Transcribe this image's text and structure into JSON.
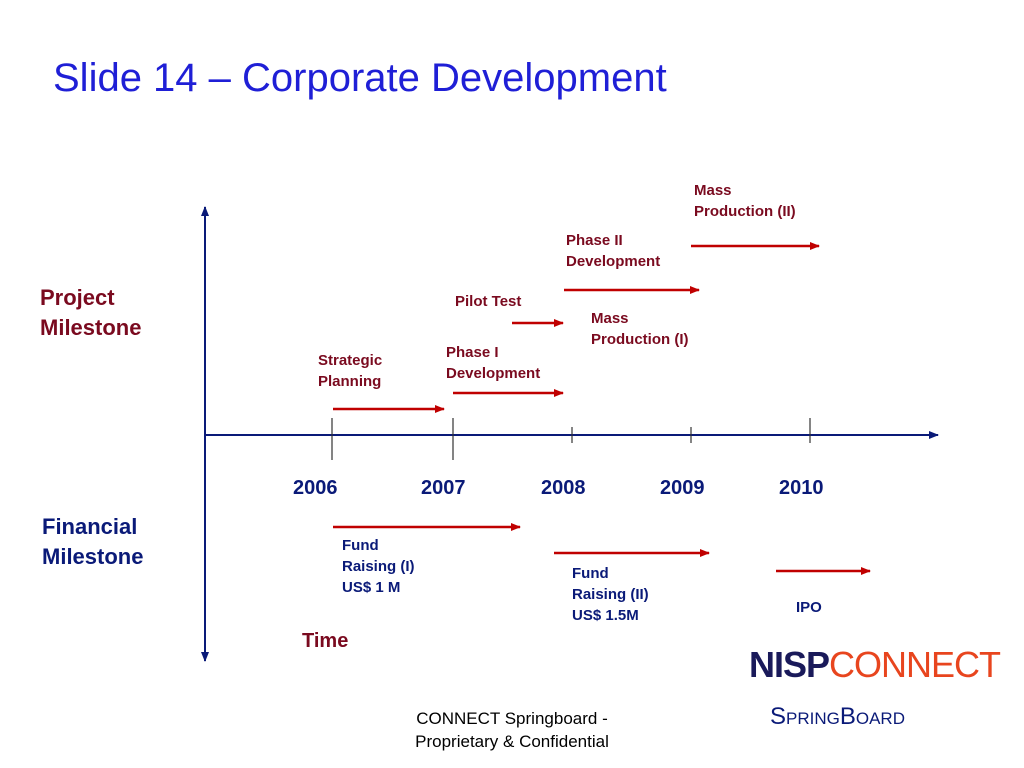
{
  "slide": {
    "title": "Slide 14 – Corporate Development"
  },
  "axes": {
    "upper_label": "Project\nMilestone",
    "lower_label": "Financial\nMilestone",
    "time_label": "Time",
    "years": [
      "2006",
      "2007",
      "2008",
      "2009",
      "2010"
    ]
  },
  "project_milestones": [
    {
      "label": "Strategic\nPlanning"
    },
    {
      "label": "Phase I\nDevelopment"
    },
    {
      "label": "Pilot Test"
    },
    {
      "label": "Mass\nProduction (I)"
    },
    {
      "label": "Phase II\nDevelopment"
    },
    {
      "label": "Mass\nProduction (II)"
    }
  ],
  "financial_milestones": [
    {
      "label": "Fund\nRaising (I)\nUS$ 1 M"
    },
    {
      "label": "Fund\nRaising (II)\nUS$ 1.5M"
    },
    {
      "label": "IPO"
    }
  ],
  "footer": {
    "line1": "CONNECT Springboard -",
    "line2": "Proprietary & Confidential"
  },
  "logo": {
    "nisp": "NISP",
    "connect": "CONNECT",
    "springboard_s": "S",
    "springboard_pring": "PRING",
    "springboard_b": "B",
    "springboard_oard": "OARD"
  },
  "colors": {
    "title": "#1f1fd6",
    "axis": "#0a1a78",
    "arrow": "#c00000",
    "milestone_text": "#7a0a1f",
    "financial_text": "#0a1a78",
    "logo_dark": "#1a1a5a",
    "logo_accent": "#e8451e"
  }
}
